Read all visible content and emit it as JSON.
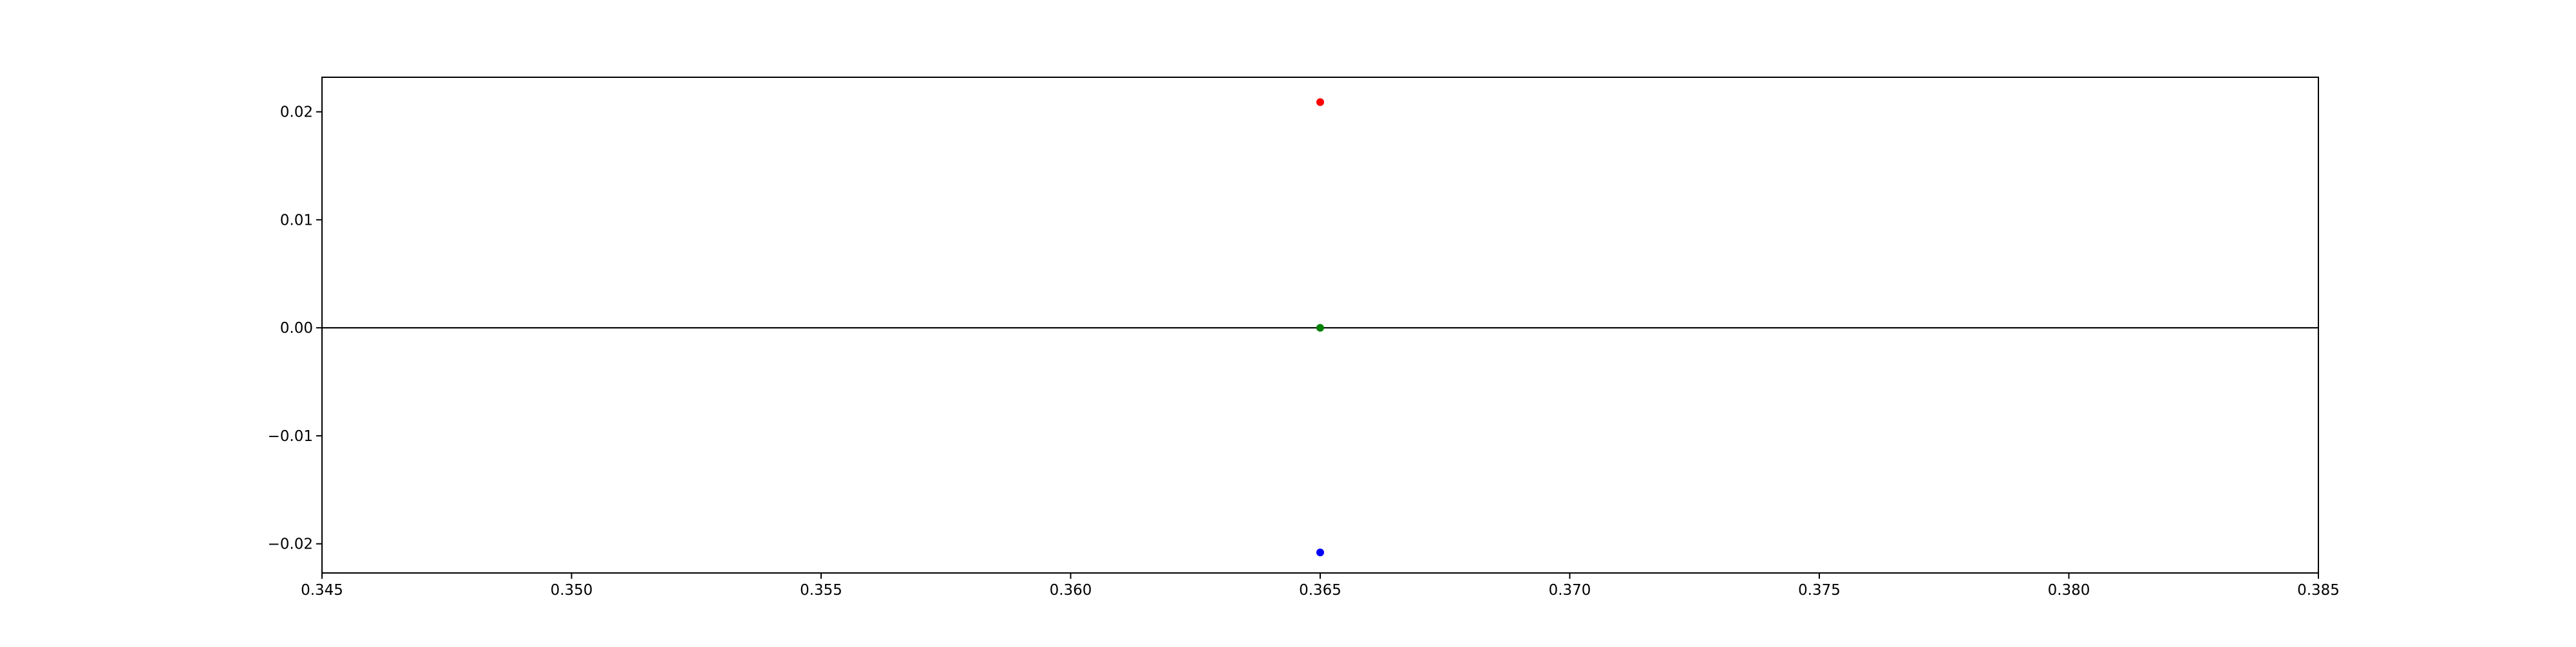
{
  "chart_data": {
    "type": "scatter",
    "title": "",
    "xlabel": "",
    "ylabel": "",
    "xlim": [
      0.345,
      0.385
    ],
    "ylim": [
      -0.0227,
      0.0232
    ],
    "grid": false,
    "x_ticks": [
      "0.345",
      "0.350",
      "0.355",
      "0.360",
      "0.365",
      "0.370",
      "0.375",
      "0.380",
      "0.385"
    ],
    "y_ticks": [
      "0.02",
      "0.01",
      "0.00",
      "−0.01",
      "−0.02"
    ],
    "reference_line": {
      "y": 0.0,
      "color": "#000000"
    },
    "series": [
      {
        "x": [
          0.365
        ],
        "y": [
          0.0209
        ],
        "color": "#ff0000"
      },
      {
        "x": [
          0.365
        ],
        "y": [
          0.0
        ],
        "color": "#008000"
      },
      {
        "x": [
          0.365
        ],
        "y": [
          -0.0208
        ],
        "color": "#0000ff"
      }
    ]
  }
}
